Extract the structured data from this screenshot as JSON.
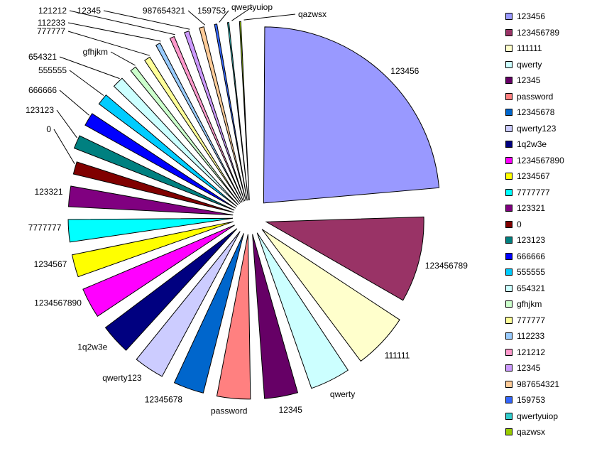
{
  "chart_data": {
    "type": "pie",
    "title": "",
    "legend_position": "right",
    "slices": [
      {
        "label": "123456",
        "value": 25.0,
        "color": "#9999ff"
      },
      {
        "label": "123456789",
        "value": 10.0,
        "color": "#993366"
      },
      {
        "label": "111111",
        "value": 6.6,
        "color": "#ffffcc"
      },
      {
        "label": "qwerty",
        "value": 5.0,
        "color": "#ccffff"
      },
      {
        "label": "12345",
        "value": 4.3,
        "color": "#660066"
      },
      {
        "label": "password",
        "value": 4.3,
        "color": "#ff8080"
      },
      {
        "label": "12345678",
        "value": 4.0,
        "color": "#0066cc"
      },
      {
        "label": "qwerty123",
        "value": 4.0,
        "color": "#ccccff"
      },
      {
        "label": "1q2w3e",
        "value": 4.0,
        "color": "#000080"
      },
      {
        "label": "1234567890",
        "value": 4.0,
        "color": "#ff00ff"
      },
      {
        "label": "1234567",
        "value": 3.2,
        "color": "#ffff00"
      },
      {
        "label": "7777777",
        "value": 3.2,
        "color": "#00ffff"
      },
      {
        "label": "123321",
        "value": 3.0,
        "color": "#800080"
      },
      {
        "label": "0",
        "value": 2.2,
        "color": "#800000"
      },
      {
        "label": "123123",
        "value": 2.2,
        "color": "#008080"
      },
      {
        "label": "666666",
        "value": 2.2,
        "color": "#0000ff"
      },
      {
        "label": "555555",
        "value": 2.0,
        "color": "#00ccff"
      },
      {
        "label": "654321",
        "value": 2.0,
        "color": "#ccffff"
      },
      {
        "label": "gfhjkm",
        "value": 1.5,
        "color": "#ccffcc"
      },
      {
        "label": "777777",
        "value": 1.5,
        "color": "#ffff99"
      },
      {
        "label": "112233",
        "value": 1.3,
        "color": "#99ccff"
      },
      {
        "label": "121212",
        "value": 1.3,
        "color": "#ff99cc"
      },
      {
        "label": "12345",
        "value": 1.3,
        "color": "#cc99ff"
      },
      {
        "label": "987654321",
        "value": 1.3,
        "color": "#ffcc99"
      },
      {
        "label": "159753",
        "value": 1.1,
        "color": "#3366ff"
      },
      {
        "label": "qwertyuiop",
        "value": 1.0,
        "color": "#33cccc"
      },
      {
        "label": "qazwsx",
        "value": 1.0,
        "color": "#99cc00"
      }
    ]
  }
}
